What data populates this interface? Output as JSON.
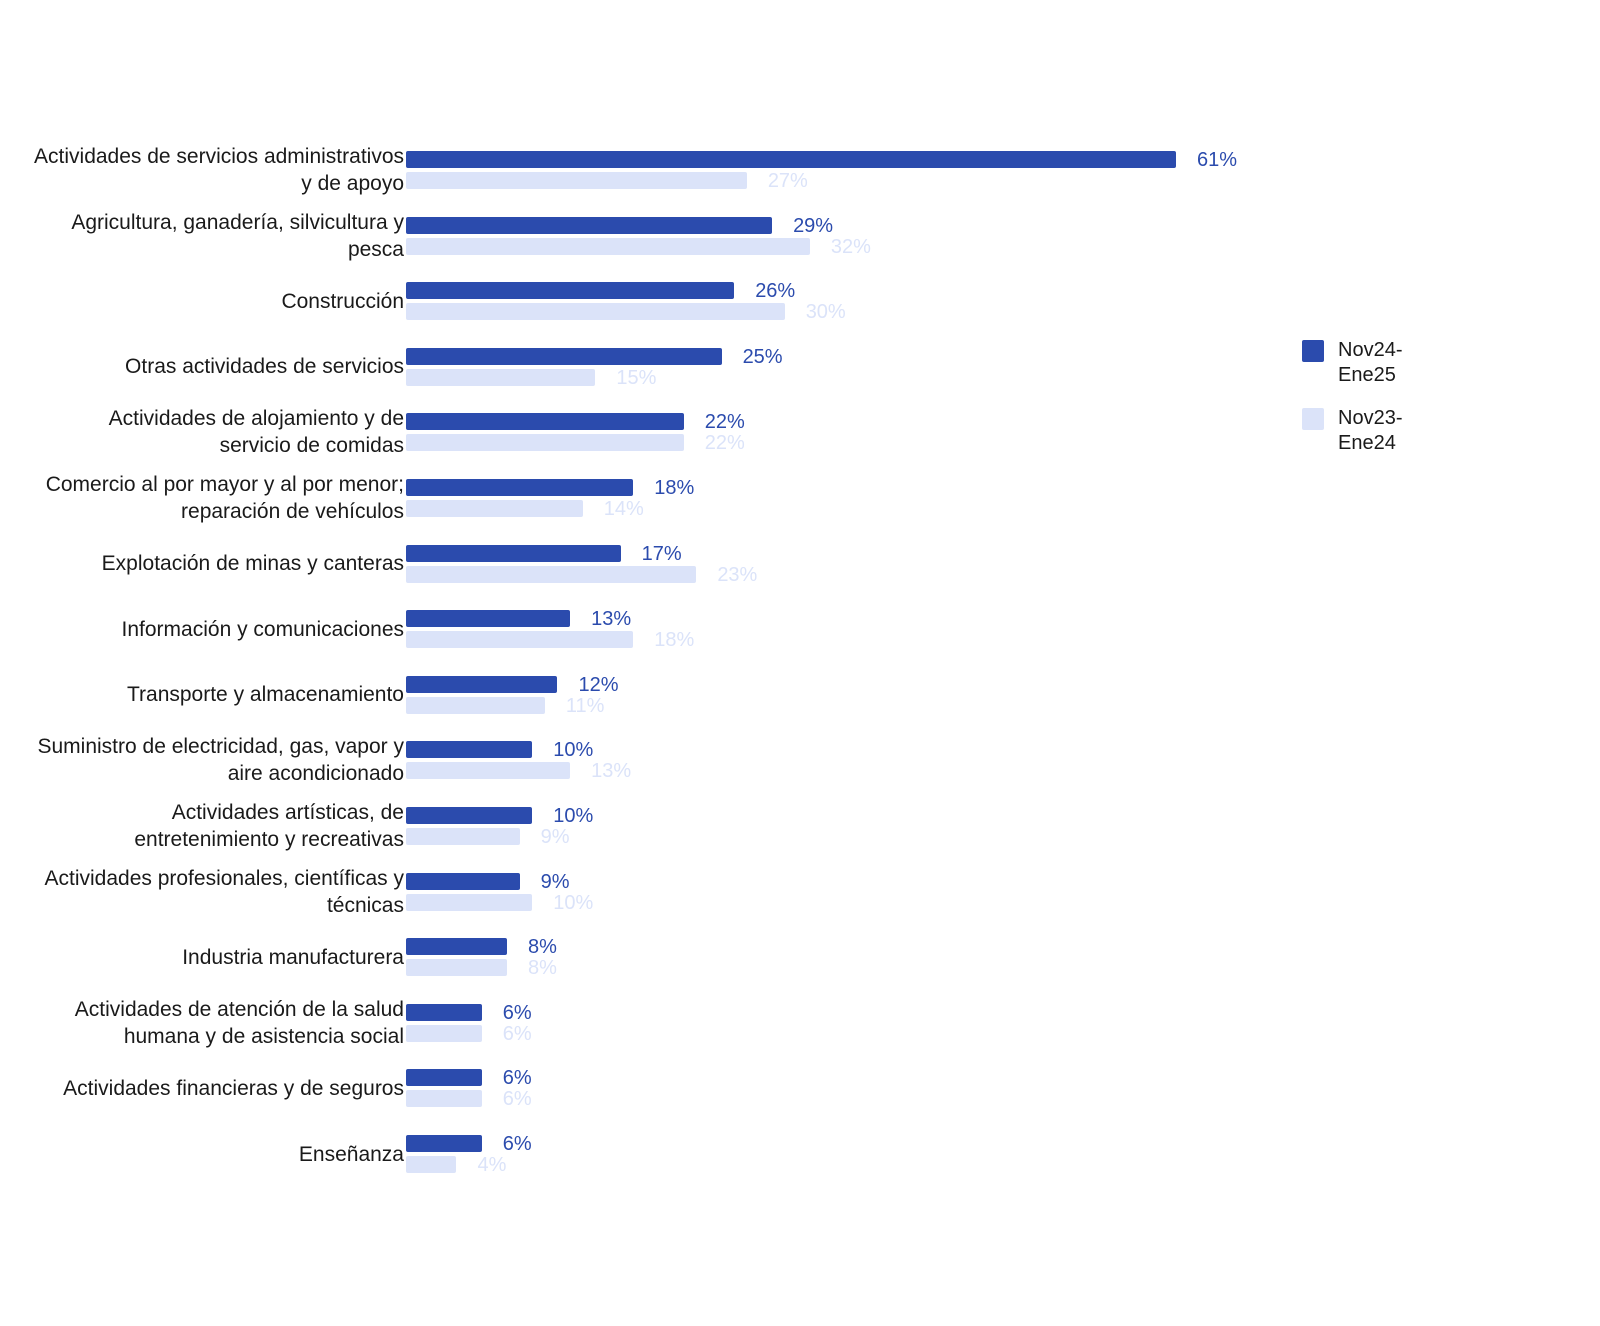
{
  "chart_data": {
    "type": "bar",
    "orientation": "horizontal",
    "categories": [
      "Actividades de servicios administrativos y de apoyo",
      "Agricultura, ganadería, silvicultura y pesca",
      "Construcción",
      "Otras actividades de servicios",
      "Actividades de alojamiento y de servicio de comidas",
      "Comercio al por mayor y al por menor; reparación de vehículos",
      "Explotación de minas y canteras",
      "Información y comunicaciones",
      "Transporte y almacenamiento",
      "Suministro de electricidad, gas, vapor y aire acondicionado",
      "Actividades artísticas, de entretenimiento y recreativas",
      "Actividades profesionales, científicas y técnicas",
      "Industria manufacturera",
      "Actividades de atención de la salud humana y de asistencia social",
      "Actividades financieras y de seguros",
      "Enseñanza"
    ],
    "series": [
      {
        "name": "Nov24-Ene25",
        "color": "#2b4bad",
        "values": [
          61,
          29,
          26,
          25,
          22,
          18,
          17,
          13,
          12,
          10,
          10,
          9,
          8,
          6,
          6,
          6
        ],
        "labels": [
          "61%",
          "29%",
          "26%",
          "25%",
          "22%",
          "18%",
          "17%",
          "13%",
          "12%",
          "10%",
          "10%",
          "9%",
          "8%",
          "6%",
          "6%",
          "6%"
        ]
      },
      {
        "name": "Nov23-Ene24",
        "color": "#dbe3f9",
        "values": [
          27,
          32,
          30,
          15,
          22,
          14,
          23,
          18,
          11,
          13,
          9,
          10,
          8,
          6,
          6,
          4
        ],
        "labels": [
          "27%",
          "32%",
          "30%",
          "15%",
          "22%",
          "14%",
          "23%",
          "18%",
          "11%",
          "13%",
          "9%",
          "10%",
          "8%",
          "6%",
          "6%",
          "4%"
        ]
      }
    ],
    "xlim": [
      0,
      61
    ],
    "grid": false,
    "legend_position": "right"
  },
  "legend": {
    "items": [
      {
        "label": "Nov24-Ene25",
        "color": "#2b4bad"
      },
      {
        "label": "Nov23-Ene24",
        "color": "#dbe3f9"
      }
    ]
  }
}
